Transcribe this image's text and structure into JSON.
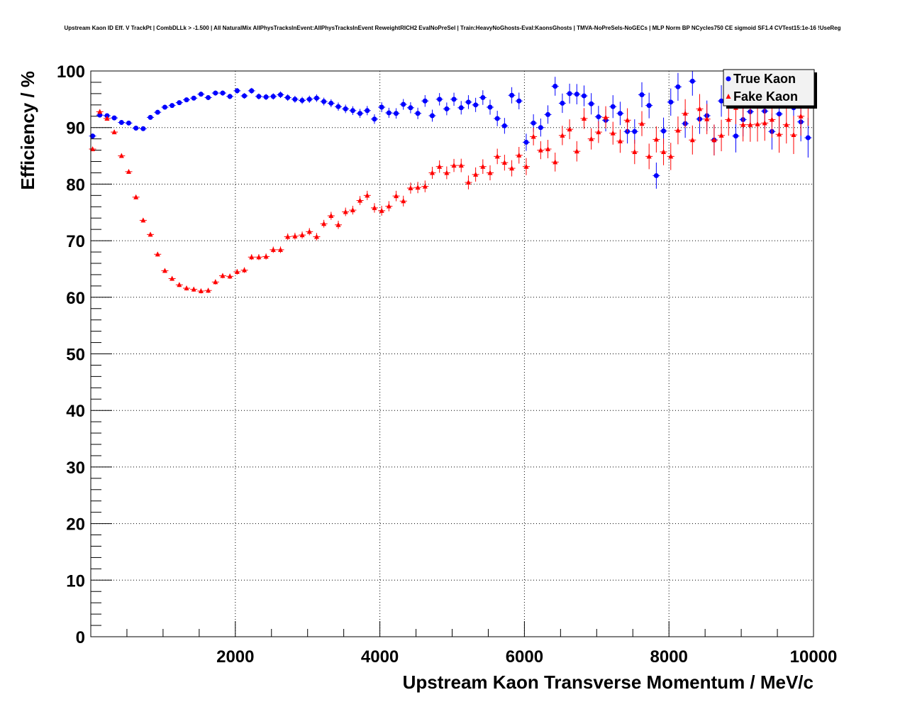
{
  "chart_data": {
    "type": "scatter",
    "title": "Upstream Kaon ID Eff. V TrackPt | CombDLLk > -1.500 | All NaturalMix AllPhysTracksInEvent:AllPhysTracksInEvent ReweightRICH2 EvalNoPreSel | Train:HeavyNoGhosts-Eval:KaonsGhosts | TMVA-NoPreSels-NoGECs | MLP Norm BP NCycles750 CE sigmoid SF1.4 CVTest15:1e-16 !UseReg",
    "xlabel": "Upstream Kaon Transverse Momentum / MeV/c",
    "ylabel": "Efficiency / %",
    "xlim": [
      0,
      10000
    ],
    "ylim": [
      0,
      100
    ],
    "x_tick_labels": [
      "2000",
      "4000",
      "6000",
      "8000",
      "10000"
    ],
    "y_tick_labels": [
      "0",
      "10",
      "20",
      "30",
      "40",
      "50",
      "60",
      "70",
      "80",
      "90",
      "100"
    ],
    "grid": true,
    "legend_position": "top-right",
    "series": [
      {
        "name": "True Kaon",
        "color": "#0000ff",
        "marker": "circle",
        "x": [
          25,
          125,
          225,
          325,
          425,
          525,
          625,
          725,
          825,
          925,
          1025,
          1125,
          1225,
          1325,
          1425,
          1525,
          1625,
          1725,
          1825,
          1925,
          2025,
          2125,
          2225,
          2325,
          2425,
          2525,
          2625,
          2725,
          2825,
          2925,
          3025,
          3125,
          3225,
          3325,
          3425,
          3525,
          3625,
          3725,
          3825,
          3925,
          4025,
          4125,
          4225,
          4325,
          4425,
          4525,
          4625,
          4725,
          4825,
          4925,
          5025,
          5125,
          5225,
          5325,
          5425,
          5525,
          5625,
          5725,
          5825,
          5925,
          6025,
          6125,
          6225,
          6325,
          6425,
          6525,
          6625,
          6725,
          6825,
          6925,
          7025,
          7125,
          7225,
          7325,
          7425,
          7525,
          7625,
          7725,
          7825,
          7925,
          8025,
          8125,
          8225,
          8325,
          8425,
          8525,
          8625,
          8725,
          8825,
          8925,
          9025,
          9125,
          9225,
          9325,
          9425,
          9525,
          9625,
          9725,
          9825,
          9925
        ],
        "y": [
          88.5,
          92.2,
          92.1,
          91.7,
          90.9,
          90.8,
          89.9,
          89.8,
          91.8,
          92.7,
          93.6,
          93.9,
          94.4,
          94.9,
          95.2,
          95.9,
          95.3,
          96.1,
          96.1,
          95.5,
          96.5,
          95.6,
          96.5,
          95.5,
          95.4,
          95.5,
          95.8,
          95.3,
          95.0,
          94.8,
          95.0,
          95.2,
          94.6,
          94.3,
          93.7,
          93.3,
          93.0,
          92.5,
          93.0,
          91.5,
          93.6,
          92.6,
          92.5,
          94.1,
          93.5,
          92.5,
          94.7,
          92.1,
          95.0,
          93.3,
          95.0,
          93.5,
          94.5,
          94.0,
          95.3,
          93.6,
          91.6,
          90.3,
          95.7,
          94.7,
          87.4,
          90.8,
          90.0,
          92.3,
          97.3,
          94.3,
          96.0,
          95.9,
          95.6,
          94.2,
          91.9,
          91.3,
          93.7,
          92.5,
          89.3,
          89.3,
          95.8,
          93.9,
          81.5,
          89.4,
          94.5,
          97.2,
          90.7,
          98.2,
          91.5,
          92.1,
          87.8,
          94.7,
          96.6,
          88.5,
          91.4,
          92.8,
          96.2,
          92.9,
          89.3,
          92.4,
          99.8,
          93.5,
          91.0,
          88.2
        ]
      },
      {
        "name": "Fake Kaon",
        "color": "#ff0000",
        "marker": "triangle",
        "x": [
          25,
          125,
          225,
          325,
          425,
          525,
          625,
          725,
          825,
          925,
          1025,
          1125,
          1225,
          1325,
          1425,
          1525,
          1625,
          1725,
          1825,
          1925,
          2025,
          2125,
          2225,
          2325,
          2425,
          2525,
          2625,
          2725,
          2825,
          2925,
          3025,
          3125,
          3225,
          3325,
          3425,
          3525,
          3625,
          3725,
          3825,
          3925,
          4025,
          4125,
          4225,
          4325,
          4425,
          4525,
          4625,
          4725,
          4825,
          4925,
          5025,
          5125,
          5225,
          5325,
          5425,
          5525,
          5625,
          5725,
          5825,
          5925,
          6025,
          6125,
          6225,
          6325,
          6425,
          6525,
          6625,
          6725,
          6825,
          6925,
          7025,
          7125,
          7225,
          7325,
          7425,
          7525,
          7625,
          7725,
          7825,
          7925,
          8025,
          8125,
          8225,
          8325,
          8425,
          8525,
          8625,
          8725,
          8825,
          8925,
          9025,
          9125,
          9225,
          9325,
          9425,
          9525,
          9625,
          9725,
          9825,
          9925
        ],
        "y": [
          86.2,
          92.8,
          91.6,
          89.2,
          85.0,
          82.2,
          77.7,
          73.6,
          71.1,
          67.6,
          64.7,
          63.3,
          62.2,
          61.6,
          61.4,
          61.1,
          61.2,
          62.7,
          63.8,
          63.7,
          64.5,
          64.8,
          67.1,
          67.1,
          67.2,
          68.4,
          68.4,
          70.7,
          70.8,
          71.0,
          71.6,
          70.7,
          73.0,
          74.4,
          72.8,
          75.1,
          75.4,
          77.1,
          78.0,
          75.8,
          75.3,
          76.1,
          77.9,
          77.0,
          79.3,
          79.4,
          79.6,
          82.0,
          83.1,
          82.0,
          83.3,
          83.3,
          80.3,
          81.7,
          83.1,
          82.0,
          84.9,
          83.8,
          82.8,
          85.1,
          83.1,
          88.4,
          86.0,
          86.2,
          83.9,
          88.6,
          89.7,
          85.8,
          91.6,
          88.0,
          89.2,
          91.8,
          89.0,
          87.6,
          91.3,
          85.7,
          90.7,
          84.9,
          87.9,
          85.7,
          84.9,
          89.5,
          92.5,
          87.8,
          93.3,
          91.5,
          87.8,
          88.6,
          91.4,
          93.5,
          90.5,
          90.5,
          90.6,
          90.8,
          91.4,
          88.8,
          90.5,
          88.7,
          92.0,
          93.8
        ]
      }
    ]
  }
}
